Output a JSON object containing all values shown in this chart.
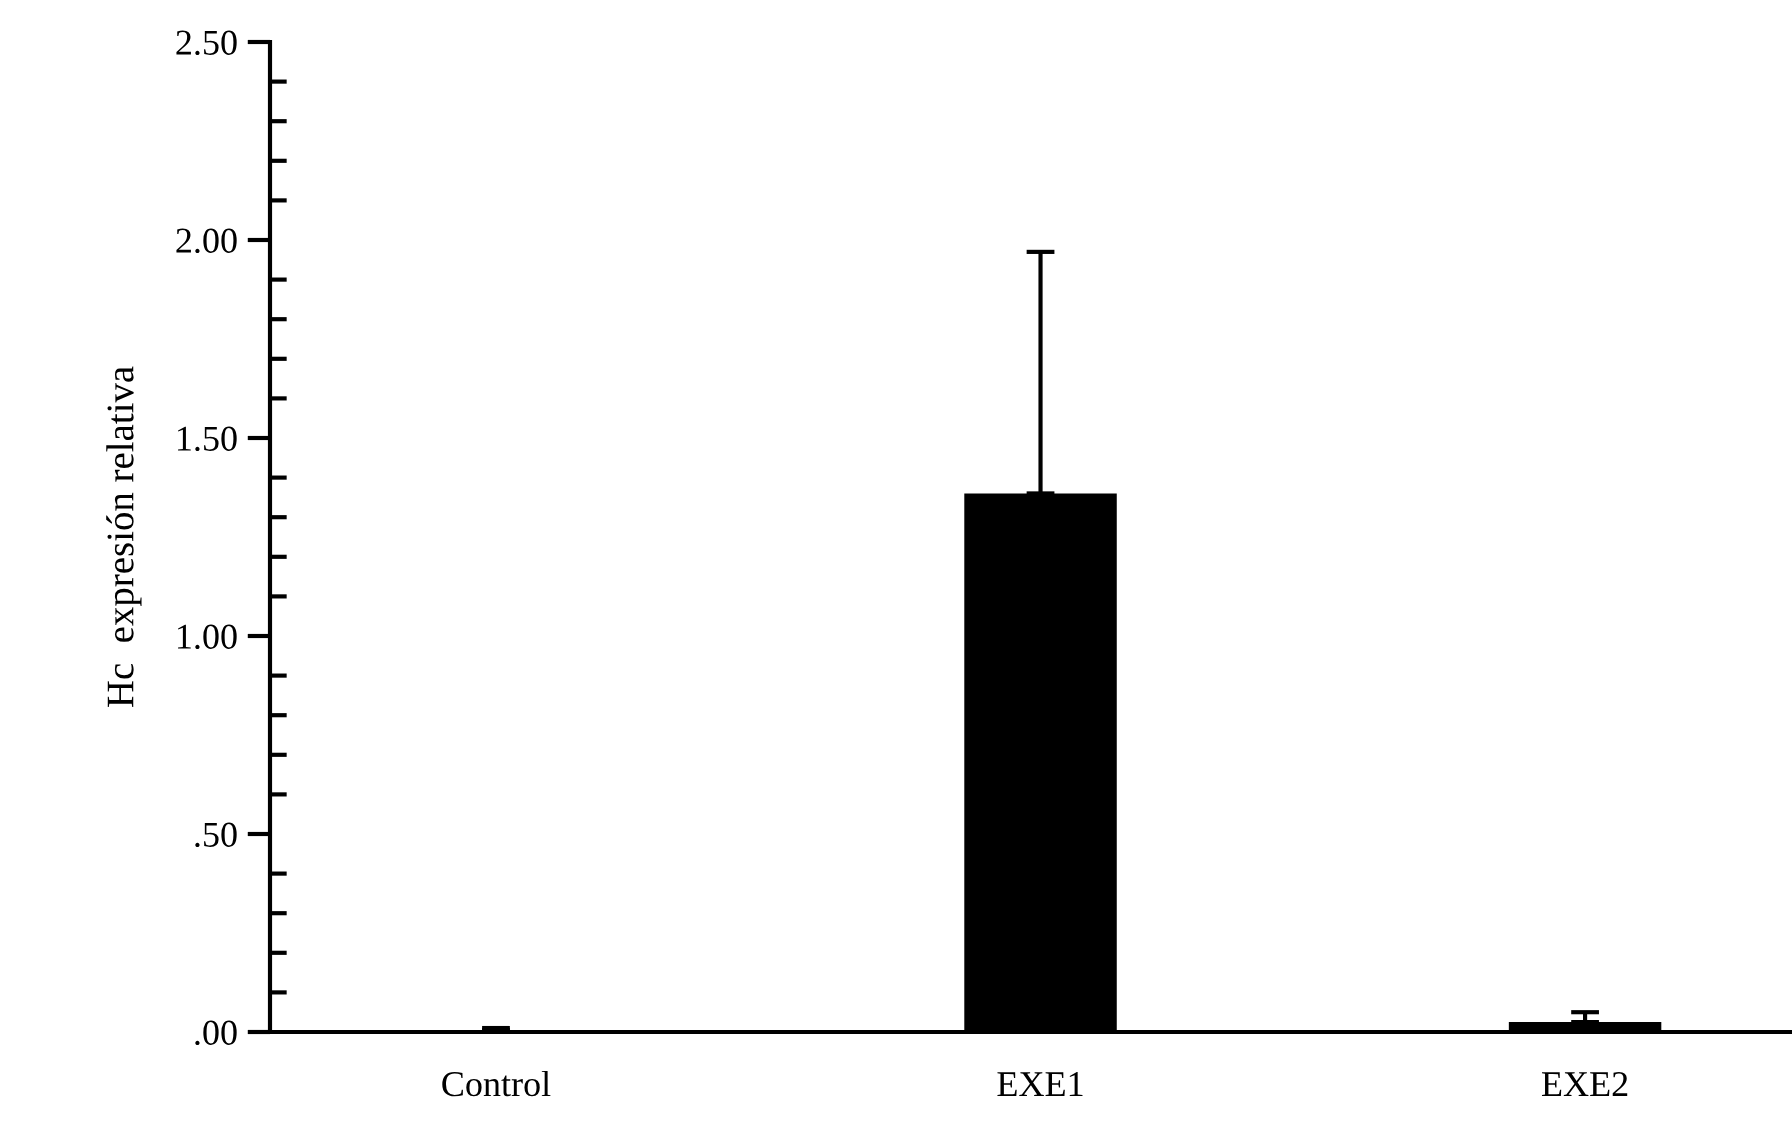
{
  "chart_data": {
    "type": "bar",
    "ylabel": "Hc  expresión relativa",
    "categories": [
      "Control",
      "EXE1",
      "EXE2"
    ],
    "values": [
      0.005,
      1.36,
      0.025
    ],
    "errors": [
      [
        0.005,
        0.01
      ],
      [
        1.36,
        1.97
      ],
      [
        0.025,
        0.05
      ]
    ],
    "color": "#000000",
    "ylim": [
      0,
      2.5
    ],
    "yticks": [
      {
        "value": 0,
        "label": ".00"
      },
      {
        "value": 0.1,
        "label": null
      },
      {
        "value": 0.2,
        "label": null
      },
      {
        "value": 0.3,
        "label": null
      },
      {
        "value": 0.4,
        "label": null
      },
      {
        "value": 0.5,
        "label": ".50"
      },
      {
        "value": 0.6,
        "label": null
      },
      {
        "value": 0.7,
        "label": null
      },
      {
        "value": 0.8,
        "label": null
      },
      {
        "value": 0.9,
        "label": null
      },
      {
        "value": 1.0,
        "label": "1.00"
      },
      {
        "value": 1.1,
        "label": null
      },
      {
        "value": 1.2,
        "label": null
      },
      {
        "value": 1.3,
        "label": null
      },
      {
        "value": 1.4,
        "label": null
      },
      {
        "value": 1.5,
        "label": "1.50"
      },
      {
        "value": 1.6,
        "label": null
      },
      {
        "value": 1.7,
        "label": null
      },
      {
        "value": 1.8,
        "label": null
      },
      {
        "value": 1.9,
        "label": null
      },
      {
        "value": 2.0,
        "label": "2.00"
      },
      {
        "value": 2.1,
        "label": null
      },
      {
        "value": 2.2,
        "label": null
      },
      {
        "value": 2.3,
        "label": null
      },
      {
        "value": 2.4,
        "label": null
      },
      {
        "value": 2.5,
        "label": "2.50"
      }
    ],
    "grid": false,
    "legend": false
  }
}
